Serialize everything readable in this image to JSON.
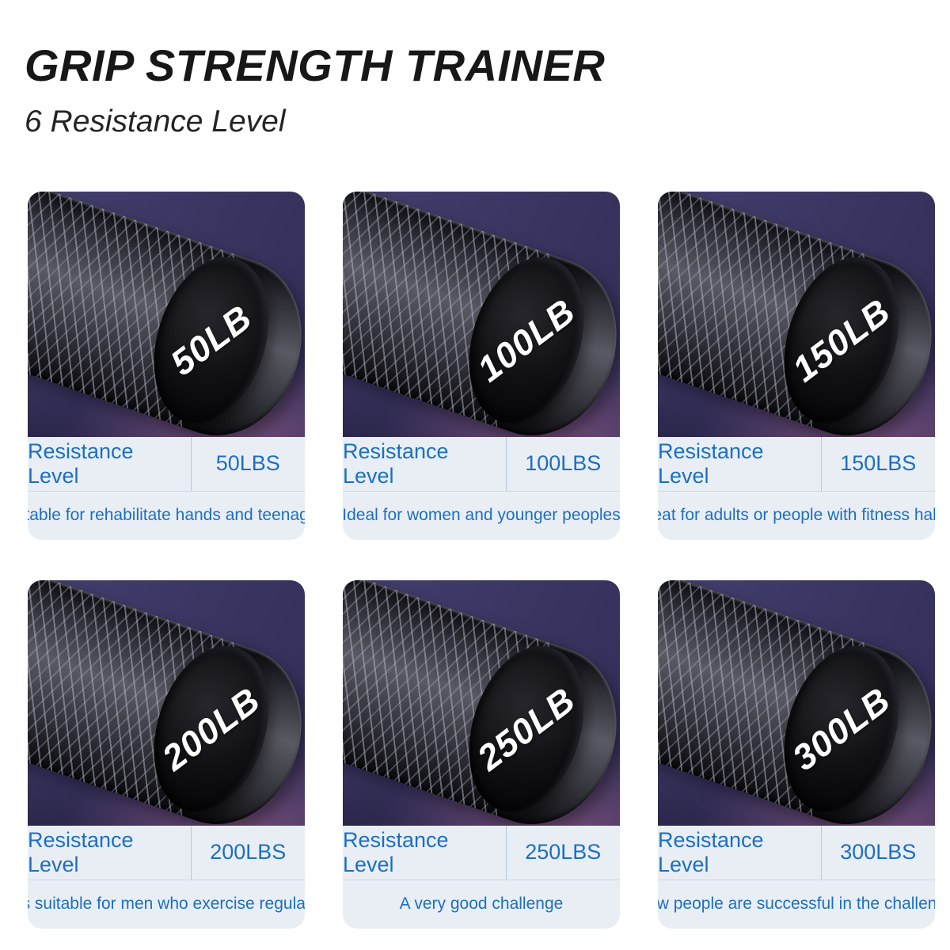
{
  "header": {
    "title": "GRIP STRENGTH TRAINER",
    "subtitle": "6 Resistance Level"
  },
  "labels": {
    "resistance_level": "Resistance Level"
  },
  "colors": {
    "accent_text": "#1c6fc2",
    "panel_bg": "#e9eef5",
    "photo_bg": "#3a3662",
    "cap_text": "#ffffff",
    "title_text": "#171717"
  },
  "cards": [
    {
      "cap_label": "50LB",
      "weight": "50LBS",
      "description": "Suitable for rehabilitate hands and teenagers"
    },
    {
      "cap_label": "100LB",
      "weight": "100LBS",
      "description": "Ideal for women and younger peoples"
    },
    {
      "cap_label": "150LB",
      "weight": "150LBS",
      "description": "Great for adults or people with fitness habits"
    },
    {
      "cap_label": "200LB",
      "weight": "200LBS",
      "description": "It's suitable for men who exercise regularly"
    },
    {
      "cap_label": "250LB",
      "weight": "250LBS",
      "description": "A very good challenge"
    },
    {
      "cap_label": "300LB",
      "weight": "300LBS",
      "description": "Few people are successful in the challenge"
    }
  ]
}
